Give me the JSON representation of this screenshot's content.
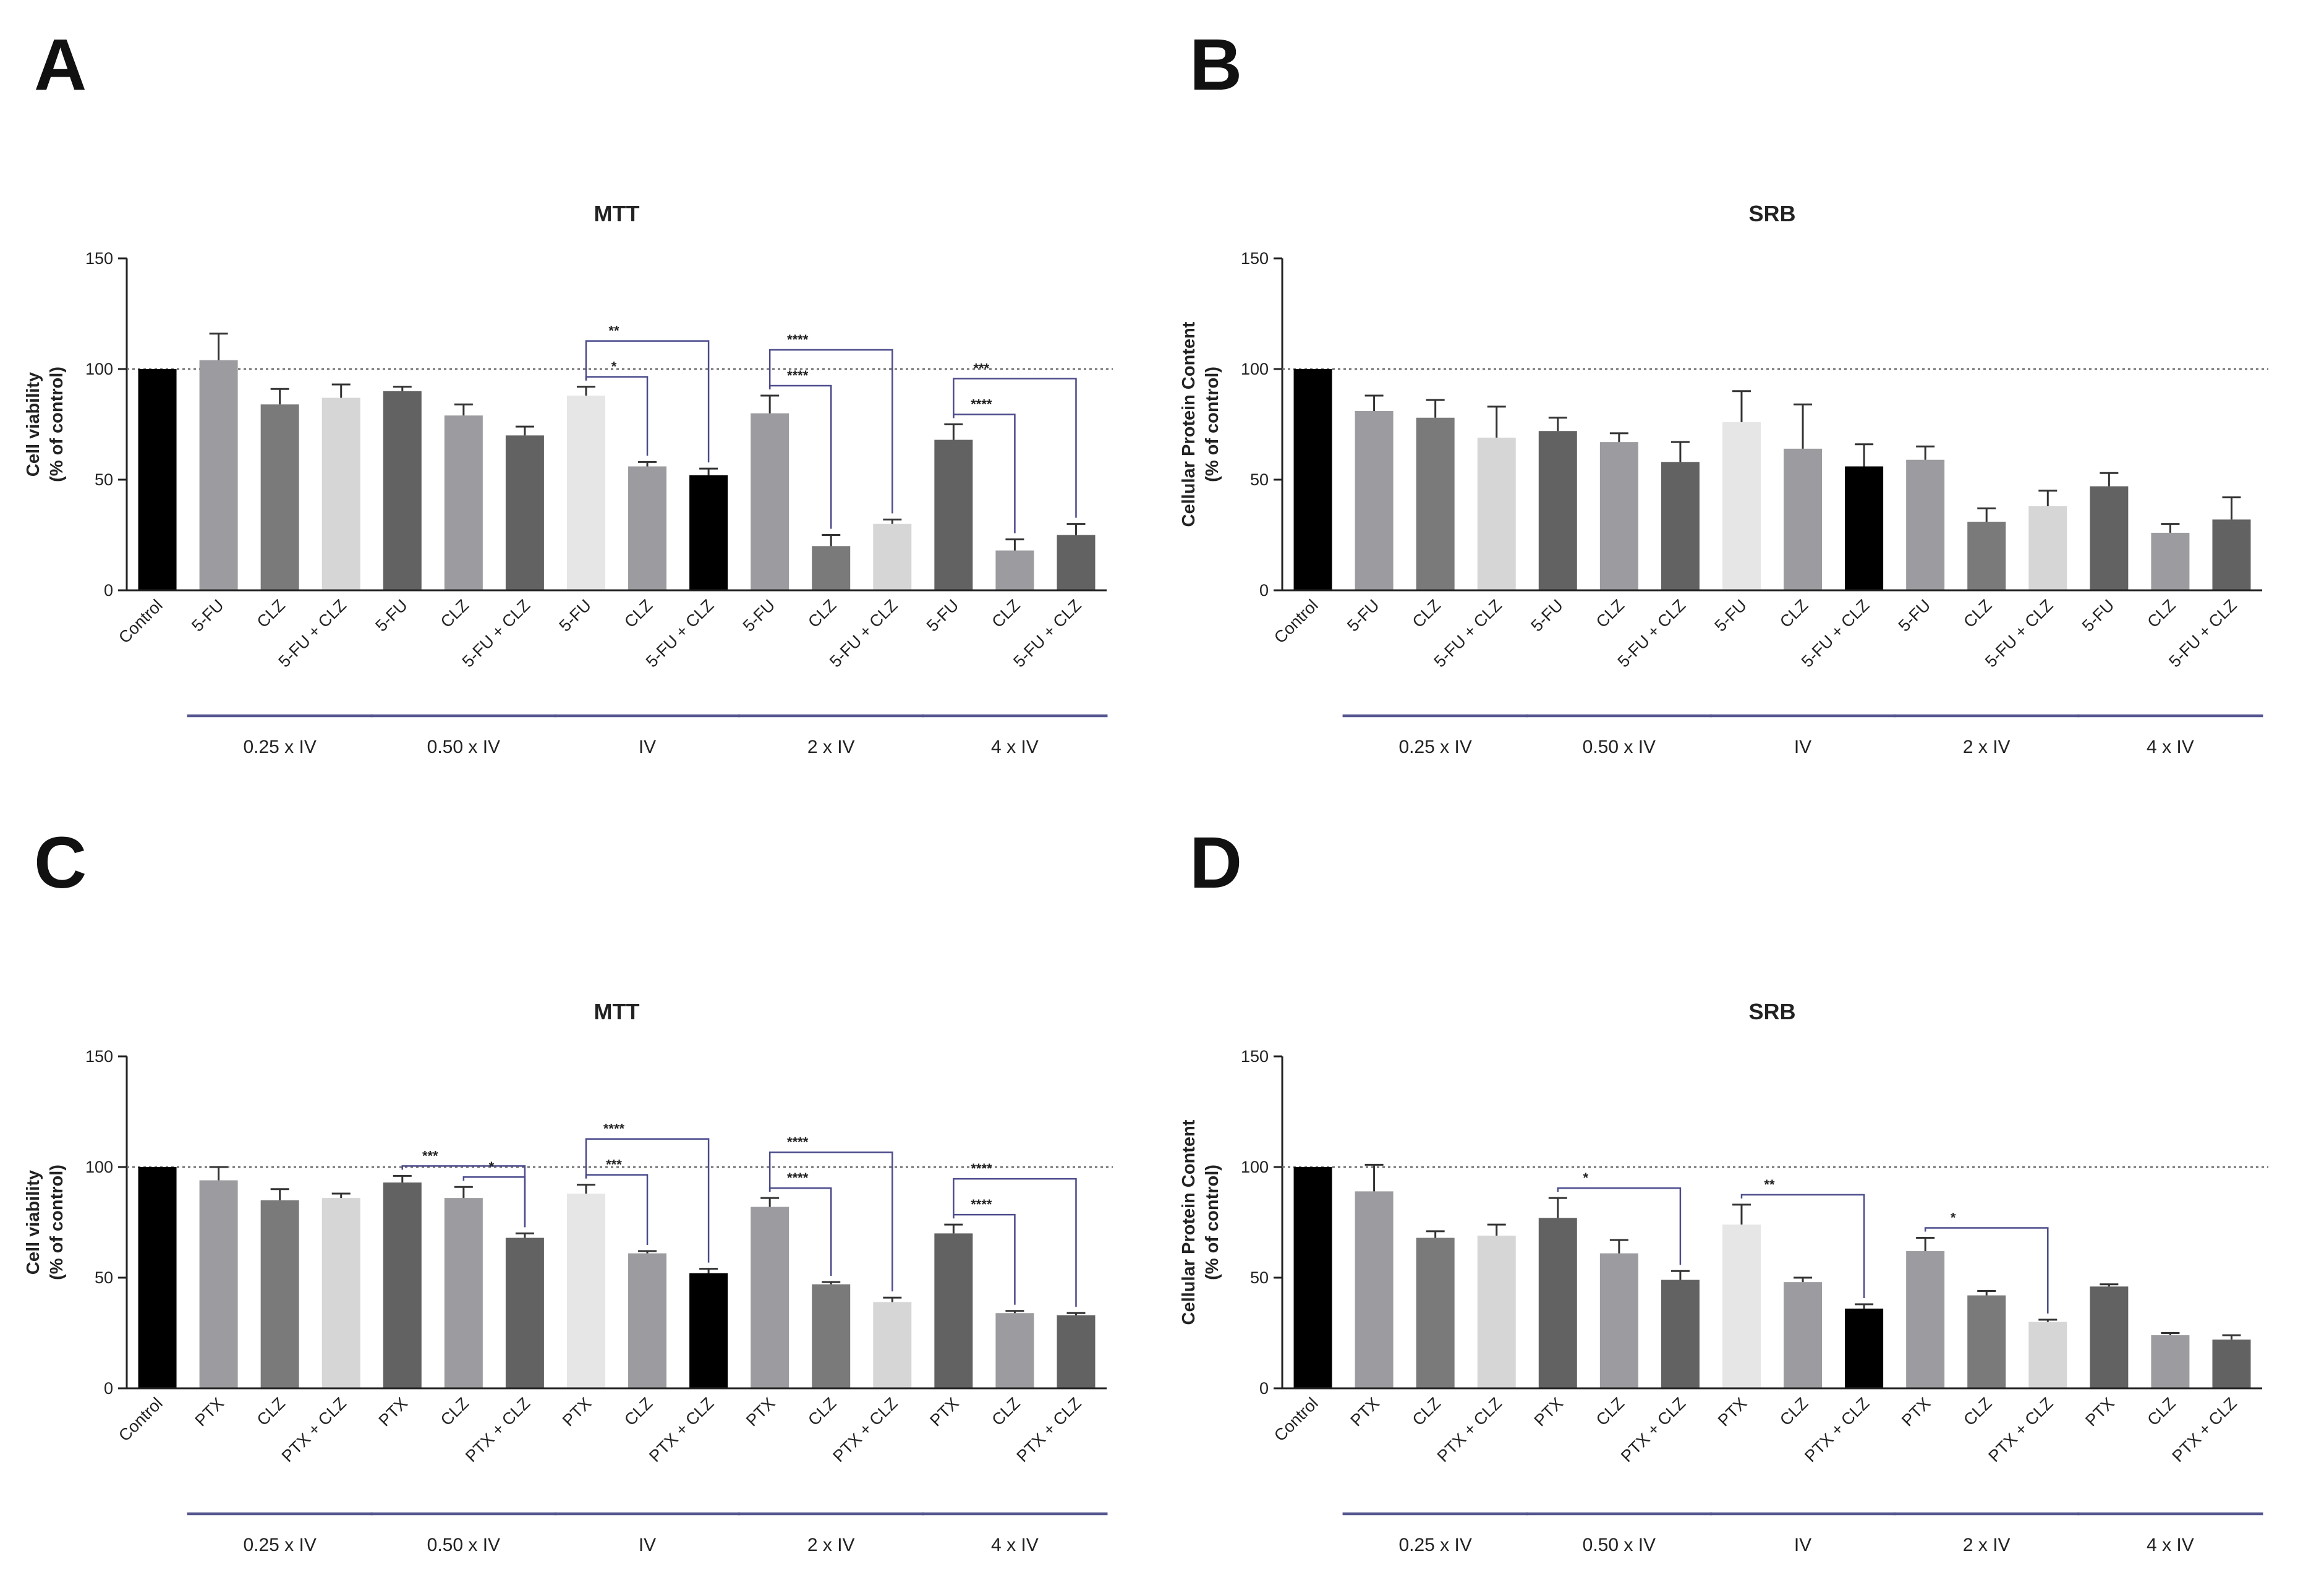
{
  "chart_data": [
    {
      "panel": "A",
      "type": "bar",
      "title": "MTT",
      "ylabel_line1": "Cell viability",
      "ylabel_line2": "(% of control)",
      "ylim": [
        0,
        150
      ],
      "yticks": [
        "0",
        "50",
        "100",
        "150"
      ],
      "reference_line": 100,
      "categories": [
        "Control",
        "5-FU",
        "CLZ",
        "5-FU + CLZ",
        "5-FU",
        "CLZ",
        "5-FU + CLZ",
        "5-FU",
        "CLZ",
        "5-FU + CLZ",
        "5-FU",
        "CLZ",
        "5-FU + CLZ",
        "5-FU",
        "CLZ",
        "5-FU + CLZ"
      ],
      "values": [
        100,
        104,
        84,
        87,
        90,
        79,
        70,
        88,
        56,
        52,
        80,
        20,
        30,
        68,
        18,
        25
      ],
      "errors": [
        0,
        12,
        7,
        6,
        2,
        5,
        4,
        4,
        2,
        3,
        8,
        5,
        2,
        7,
        5,
        5
      ],
      "colors": [
        "#000000",
        "#9c9ca0",
        "#7a7a7a",
        "#d6d6d6",
        "#626262",
        "#9c9ca0",
        "#626262",
        "#e6e6e6",
        "#9c9ca0",
        "#000000",
        "#9c9ca0",
        "#7a7a7a",
        "#d6d6d6",
        "#626262",
        "#9c9ca0",
        "#626262"
      ],
      "groups": [
        "0.25 x IV",
        "0.50 x IV",
        "IV",
        "2 x IV",
        "4 x IV"
      ],
      "significance": [
        {
          "from": 7,
          "to": 9,
          "label": "**"
        },
        {
          "from": 7,
          "to": 8,
          "label": "*"
        },
        {
          "from": 10,
          "to": 12,
          "label": "****"
        },
        {
          "from": 10,
          "to": 11,
          "label": "****"
        },
        {
          "from": 13,
          "to": 15,
          "label": "***"
        },
        {
          "from": 13,
          "to": 14,
          "label": "****"
        }
      ]
    },
    {
      "panel": "B",
      "type": "bar",
      "title": "SRB",
      "ylabel_line1": "Cellular Protein Content",
      "ylabel_line2": "(% of control)",
      "ylim": [
        0,
        150
      ],
      "yticks": [
        "0",
        "50",
        "100",
        "150"
      ],
      "reference_line": 100,
      "categories": [
        "Control",
        "5-FU",
        "CLZ",
        "5-FU + CLZ",
        "5-FU",
        "CLZ",
        "5-FU + CLZ",
        "5-FU",
        "CLZ",
        "5-FU + CLZ",
        "5-FU",
        "CLZ",
        "5-FU + CLZ",
        "5-FU",
        "CLZ",
        "5-FU + CLZ"
      ],
      "values": [
        100,
        81,
        78,
        69,
        72,
        67,
        58,
        76,
        64,
        56,
        59,
        31,
        38,
        47,
        26,
        32
      ],
      "errors": [
        0,
        7,
        8,
        14,
        6,
        4,
        9,
        14,
        20,
        10,
        6,
        6,
        7,
        6,
        4,
        10
      ],
      "colors": [
        "#000000",
        "#9c9ca0",
        "#7a7a7a",
        "#d6d6d6",
        "#626262",
        "#9c9ca0",
        "#626262",
        "#e6e6e6",
        "#9c9ca0",
        "#000000",
        "#9c9ca0",
        "#7a7a7a",
        "#d6d6d6",
        "#626262",
        "#9c9ca0",
        "#626262"
      ],
      "groups": [
        "0.25 x IV",
        "0.50 x IV",
        "IV",
        "2 x IV",
        "4 x IV"
      ],
      "significance": []
    },
    {
      "panel": "C",
      "type": "bar",
      "title": "MTT",
      "ylabel_line1": "Cell viability",
      "ylabel_line2": "(% of control)",
      "ylim": [
        0,
        150
      ],
      "yticks": [
        "0",
        "50",
        "100",
        "150"
      ],
      "reference_line": 100,
      "categories": [
        "Control",
        "PTX",
        "CLZ",
        "PTX + CLZ",
        "PTX",
        "CLZ",
        "PTX + CLZ",
        "PTX",
        "CLZ",
        "PTX + CLZ",
        "PTX",
        "CLZ",
        "PTX + CLZ",
        "PTX",
        "CLZ",
        "PTX + CLZ"
      ],
      "values": [
        100,
        94,
        85,
        86,
        93,
        86,
        68,
        88,
        61,
        52,
        82,
        47,
        39,
        70,
        34,
        33
      ],
      "errors": [
        0,
        6,
        5,
        2,
        3,
        5,
        2,
        4,
        1,
        2,
        4,
        1,
        2,
        4,
        1,
        1
      ],
      "colors": [
        "#000000",
        "#9c9ca0",
        "#7a7a7a",
        "#d6d6d6",
        "#626262",
        "#9c9ca0",
        "#626262",
        "#e6e6e6",
        "#9c9ca0",
        "#000000",
        "#9c9ca0",
        "#7a7a7a",
        "#d6d6d6",
        "#626262",
        "#9c9ca0",
        "#626262"
      ],
      "groups": [
        "0.25 x IV",
        "0.50 x IV",
        "IV",
        "2 x IV",
        "4 x IV"
      ],
      "significance": [
        {
          "from": 4,
          "to": 6,
          "label": "***"
        },
        {
          "from": 5,
          "to": 6,
          "label": "*"
        },
        {
          "from": 7,
          "to": 9,
          "label": "****"
        },
        {
          "from": 7,
          "to": 8,
          "label": "***"
        },
        {
          "from": 10,
          "to": 12,
          "label": "****"
        },
        {
          "from": 10,
          "to": 11,
          "label": "****"
        },
        {
          "from": 13,
          "to": 15,
          "label": "****"
        },
        {
          "from": 13,
          "to": 14,
          "label": "****"
        }
      ]
    },
    {
      "panel": "D",
      "type": "bar",
      "title": "SRB",
      "ylabel_line1": "Cellular Protein Content",
      "ylabel_line2": "(% of control)",
      "ylim": [
        0,
        150
      ],
      "yticks": [
        "0",
        "50",
        "100",
        "150"
      ],
      "reference_line": 100,
      "categories": [
        "Control",
        "PTX",
        "CLZ",
        "PTX + CLZ",
        "PTX",
        "CLZ",
        "PTX + CLZ",
        "PTX",
        "CLZ",
        "PTX + CLZ",
        "PTX",
        "CLZ",
        "PTX + CLZ",
        "PTX",
        "CLZ",
        "PTX + CLZ"
      ],
      "values": [
        100,
        89,
        68,
        69,
        77,
        61,
        49,
        74,
        48,
        36,
        62,
        42,
        30,
        46,
        24,
        22
      ],
      "errors": [
        0,
        12,
        3,
        5,
        9,
        6,
        4,
        9,
        2,
        2,
        6,
        2,
        1,
        1,
        1,
        2
      ],
      "colors": [
        "#000000",
        "#9c9ca0",
        "#7a7a7a",
        "#d6d6d6",
        "#626262",
        "#9c9ca0",
        "#626262",
        "#e6e6e6",
        "#9c9ca0",
        "#000000",
        "#9c9ca0",
        "#7a7a7a",
        "#d6d6d6",
        "#626262",
        "#9c9ca0",
        "#626262"
      ],
      "groups": [
        "0.25 x IV",
        "0.50 x IV",
        "IV",
        "2 x IV",
        "4 x IV"
      ],
      "significance": [
        {
          "from": 4,
          "to": 6,
          "label": "*"
        },
        {
          "from": 7,
          "to": 9,
          "label": "**"
        },
        {
          "from": 10,
          "to": 12,
          "label": "*"
        }
      ]
    }
  ],
  "style": {
    "bracket_color": "#4b4b8c",
    "group_line_color": "#55558f",
    "axis_color": "#222222",
    "errorbar_color": "#333333",
    "refline_color": "#666666"
  }
}
